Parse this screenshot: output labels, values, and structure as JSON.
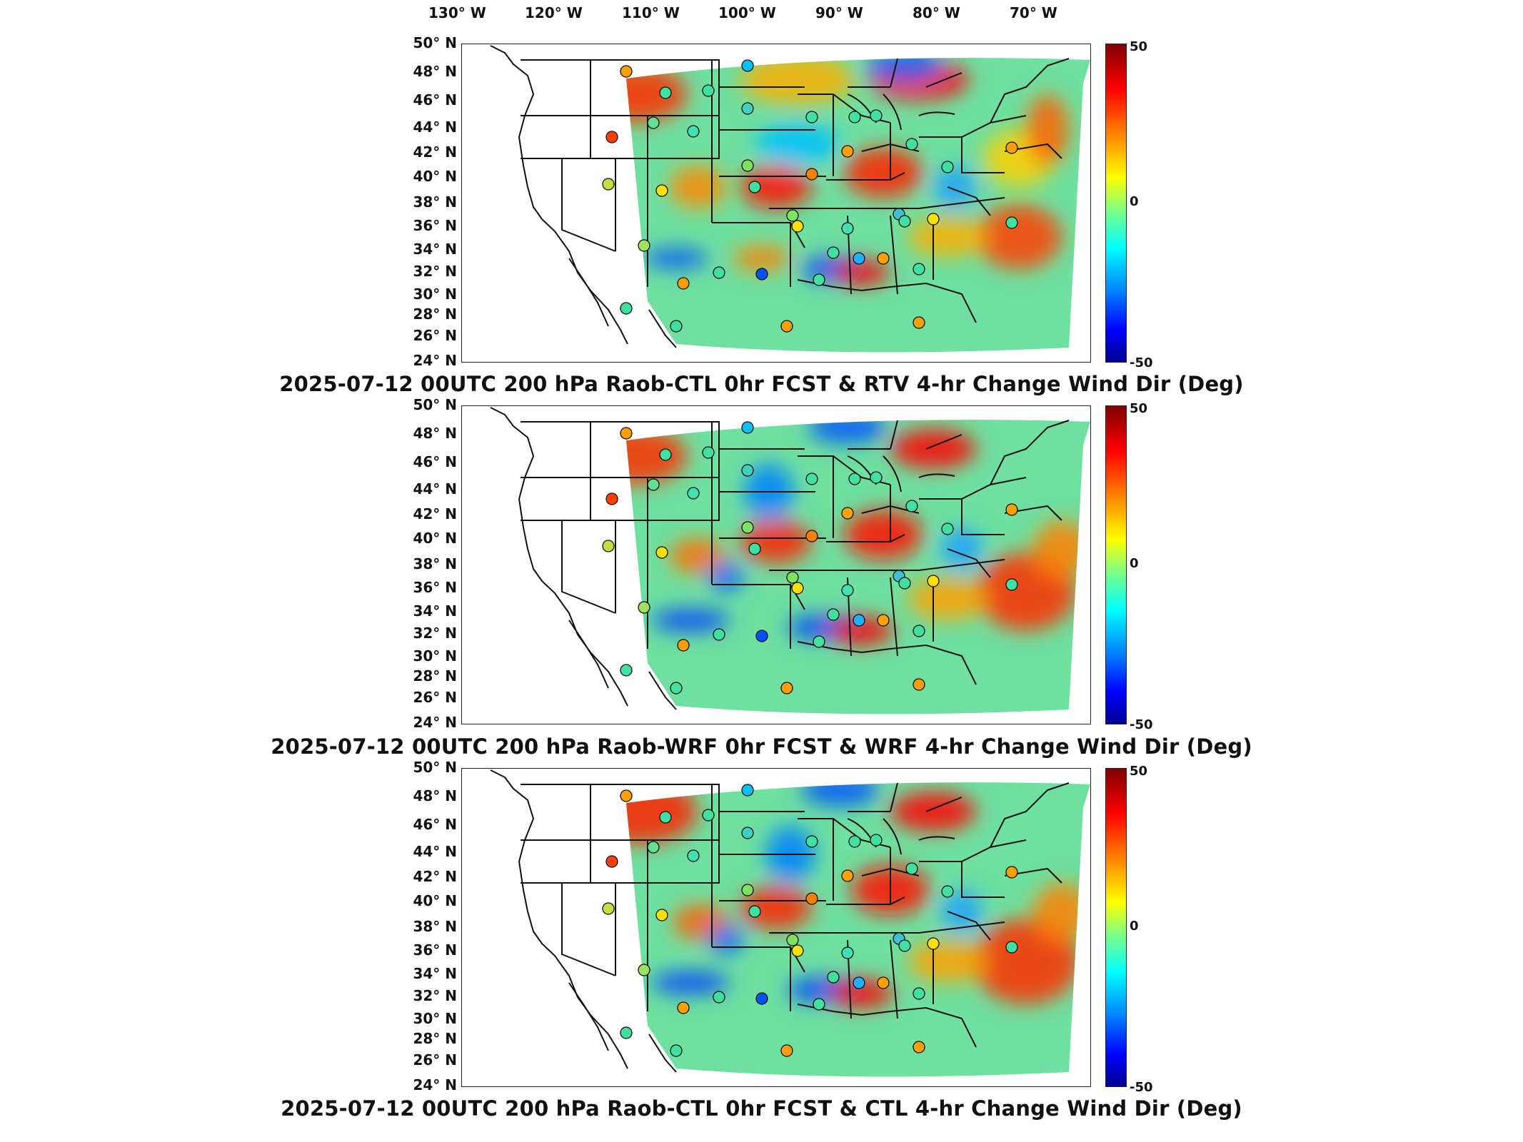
{
  "longitude_labels": [
    "130° W",
    "120° W",
    "110° W",
    "100° W",
    "90° W",
    "80° W",
    "70° W"
  ],
  "latitude_labels": [
    "50° N",
    "48° N",
    "46° N",
    "44° N",
    "42° N",
    "40° N",
    "38° N",
    "36° N",
    "34° N",
    "32° N",
    "30° N",
    "28° N",
    "26° N",
    "24° N"
  ],
  "colorbar": {
    "max_label": "50",
    "mid_label": "0",
    "min_label": "-50"
  },
  "panels": [
    {
      "title": "2025-07-12 00UTC 200 hPa Raob-CTL 0hr FCST & RTV 4-hr Change Wind Dir (Deg)"
    },
    {
      "title": "2025-07-12 00UTC 200 hPa Raob-WRF 0hr FCST & WRF 4-hr Change Wind Dir (Deg)"
    },
    {
      "title": "2025-07-12 00UTC 200 hPa Raob-CTL 0hr FCST & CTL 4-hr Change Wind Dir (Deg)"
    }
  ],
  "colors": {
    "domain_base": "#6fe0a0",
    "station_outline": "#111111"
  }
}
